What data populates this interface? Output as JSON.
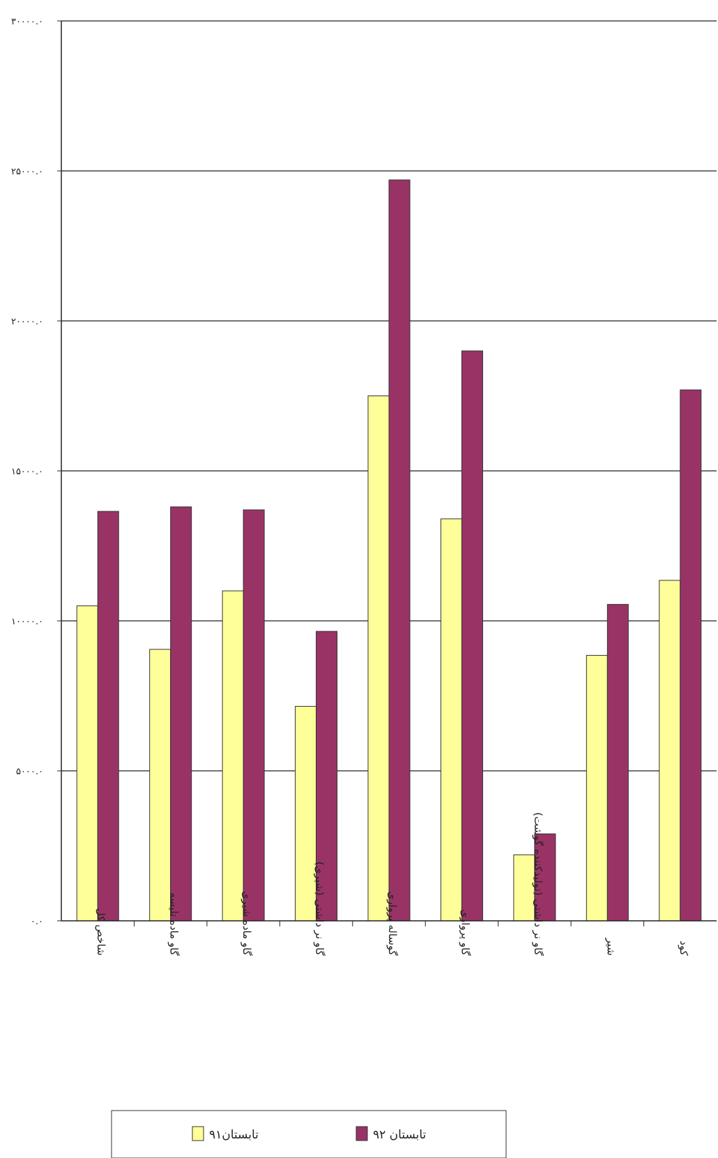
{
  "chart_data": {
    "type": "bar",
    "categories": [
      "شاخص کل",
      "گاو ماده تلیسه",
      "گاو ماده شیری",
      "گاو نر داشتی (شیری)",
      "گوساله پرواری",
      "گاو پرواری",
      "گاو نر داشتی (تولیدکننده گوشت)",
      "شیر",
      "کود"
    ],
    "series": [
      {
        "name": "تابستان۹۱",
        "color": "#ffff99",
        "values": [
          105000,
          90500,
          110000,
          71500,
          175000,
          134000,
          22000,
          88500,
          113500
        ]
      },
      {
        "name": "تابستان ۹۲",
        "color": "#993366",
        "values": [
          136500,
          138000,
          137000,
          96500,
          247000,
          190000,
          29000,
          105500,
          177000
        ]
      }
    ],
    "yticks": [
      "۰.۰",
      "۵۰۰۰.۰",
      "۱۰۰۰۰.۰",
      "۱۵۰۰۰.۰",
      "۲۰۰۰۰.۰",
      "۲۵۰۰۰.۰",
      "۳۰۰۰۰.۰"
    ],
    "ylim": [
      0,
      300000
    ],
    "grid": true,
    "legend_position": "bottom"
  }
}
